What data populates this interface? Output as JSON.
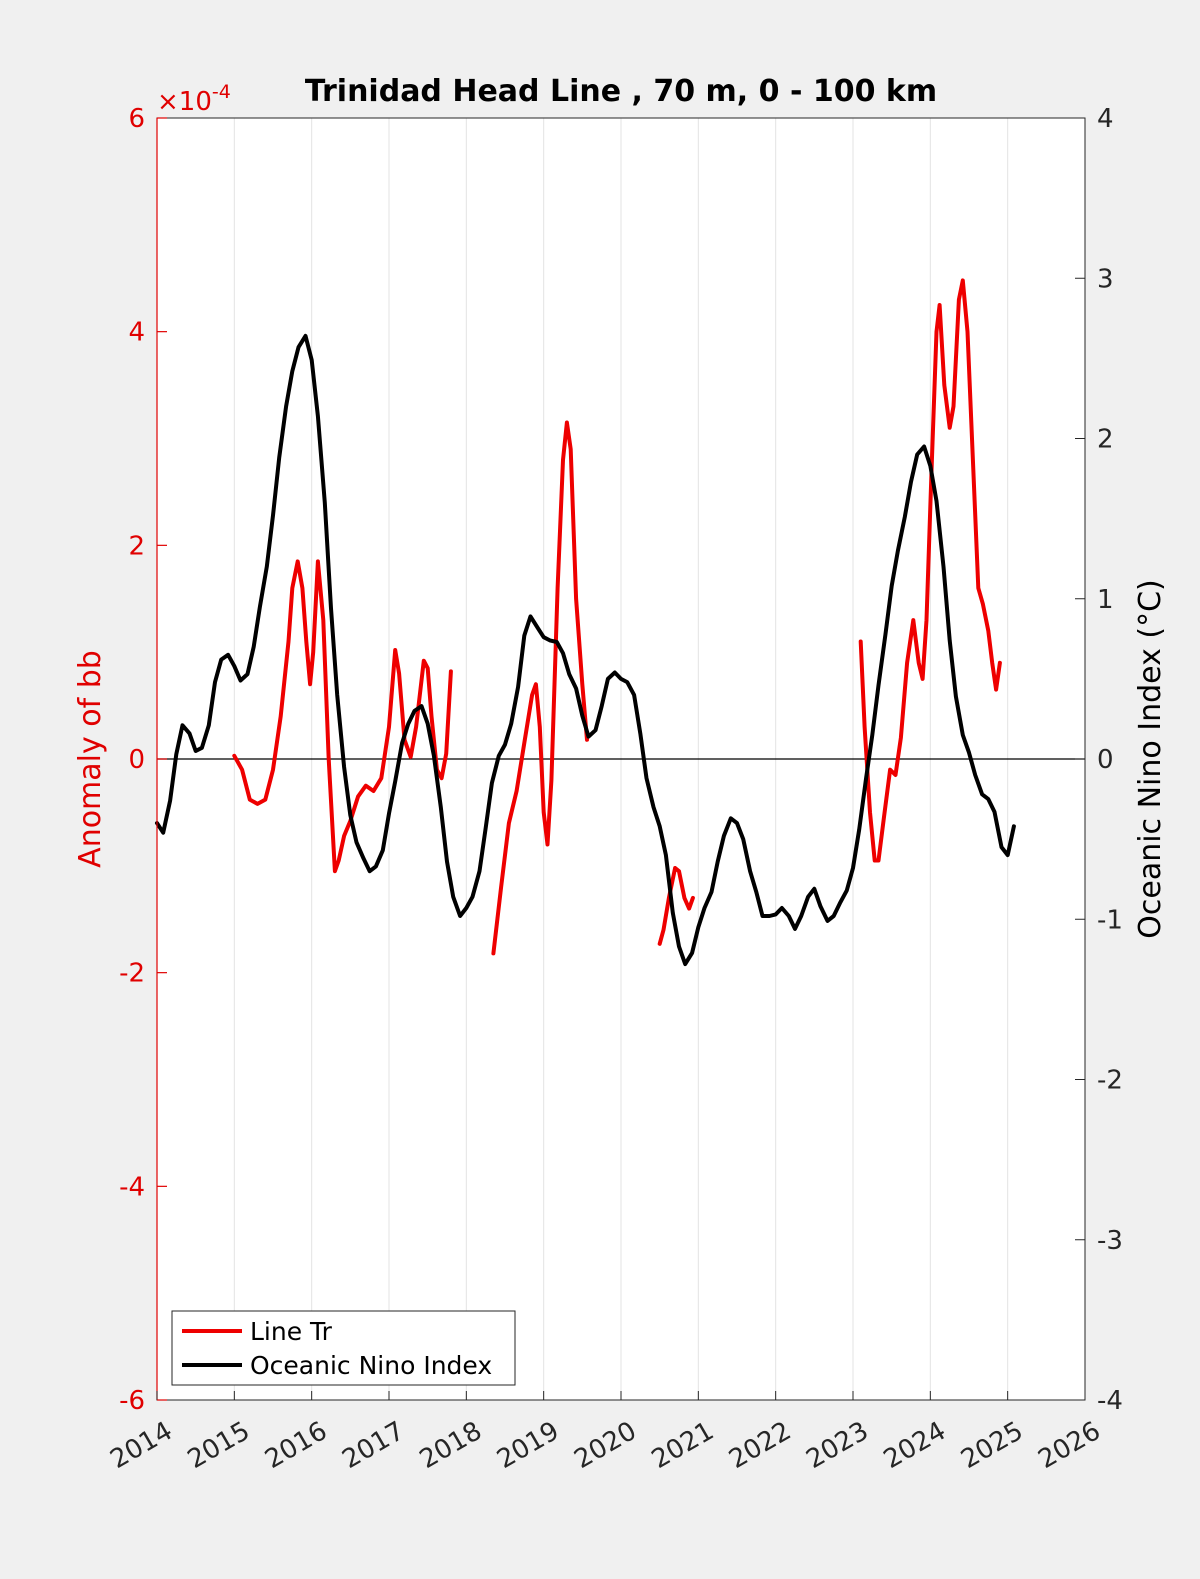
{
  "chart_data": {
    "type": "line",
    "title": "Trinidad Head Line , 70 m, 0 - 100 km",
    "xlabel": "",
    "ylabel_left": "Anomaly of bb",
    "ylabel_right": "Oceanic Nino Index (°C)",
    "left_axis_exponent": "×10",
    "left_axis_exponent_power": "-4",
    "xlim": [
      2014,
      2026
    ],
    "ylim_left": [
      -6,
      6
    ],
    "ylim_right": [
      -4,
      4
    ],
    "x_ticks": [
      2014,
      2015,
      2016,
      2017,
      2018,
      2019,
      2020,
      2021,
      2022,
      2023,
      2024,
      2025,
      2026
    ],
    "y_left_ticks": [
      -6,
      -4,
      -2,
      0,
      2,
      4,
      6
    ],
    "y_right_ticks": [
      -4,
      -3,
      -2,
      -1,
      0,
      1,
      2,
      3,
      4
    ],
    "grid": "vertical",
    "legend_position": "bottom-left",
    "colors": {
      "left_axis": "#e00000",
      "right_axis": "#000000",
      "background": "#f0f0f0",
      "plot_bg": "#ffffff",
      "grid": "#e3e3e3"
    },
    "series": [
      {
        "name": "Line Tr",
        "axis": "left",
        "color": "#ee0000",
        "segments": [
          [
            [
              2015.0,
              0.03
            ],
            [
              2015.1,
              -0.1
            ],
            [
              2015.2,
              -0.38
            ],
            [
              2015.3,
              -0.42
            ],
            [
              2015.4,
              -0.38
            ],
            [
              2015.5,
              -0.1
            ],
            [
              2015.6,
              0.4
            ],
            [
              2015.7,
              1.1
            ],
            [
              2015.75,
              1.6
            ],
            [
              2015.82,
              1.85
            ],
            [
              2015.88,
              1.6
            ],
            [
              2015.93,
              1.1
            ],
            [
              2015.98,
              0.7
            ],
            [
              2016.02,
              1.0
            ],
            [
              2016.08,
              1.85
            ],
            [
              2016.15,
              1.3
            ],
            [
              2016.22,
              0.0
            ],
            [
              2016.3,
              -1.05
            ],
            [
              2016.35,
              -0.95
            ],
            [
              2016.42,
              -0.72
            ],
            [
              2016.5,
              -0.58
            ],
            [
              2016.6,
              -0.35
            ],
            [
              2016.7,
              -0.25
            ],
            [
              2016.8,
              -0.3
            ],
            [
              2016.9,
              -0.18
            ],
            [
              2017.0,
              0.3
            ],
            [
              2017.08,
              1.02
            ],
            [
              2017.13,
              0.8
            ],
            [
              2017.2,
              0.18
            ],
            [
              2017.28,
              0.02
            ],
            [
              2017.35,
              0.3
            ],
            [
              2017.45,
              0.92
            ],
            [
              2017.5,
              0.85
            ],
            [
              2017.55,
              0.4
            ],
            [
              2017.62,
              -0.1
            ],
            [
              2017.68,
              -0.18
            ],
            [
              2017.74,
              0.05
            ],
            [
              2017.8,
              0.82
            ]
          ],
          [
            [
              2018.35,
              -1.82
            ],
            [
              2018.45,
              -1.2
            ],
            [
              2018.55,
              -0.6
            ],
            [
              2018.65,
              -0.3
            ],
            [
              2018.75,
              0.15
            ],
            [
              2018.85,
              0.6
            ],
            [
              2018.9,
              0.7
            ],
            [
              2018.95,
              0.3
            ],
            [
              2019.0,
              -0.5
            ],
            [
              2019.05,
              -0.8
            ],
            [
              2019.1,
              -0.2
            ],
            [
              2019.18,
              1.6
            ],
            [
              2019.25,
              2.8
            ],
            [
              2019.3,
              3.15
            ],
            [
              2019.35,
              2.9
            ],
            [
              2019.42,
              1.5
            ],
            [
              2019.5,
              0.7
            ],
            [
              2019.56,
              0.18
            ]
          ],
          [
            [
              2020.5,
              -1.73
            ],
            [
              2020.55,
              -1.6
            ],
            [
              2020.62,
              -1.3
            ],
            [
              2020.7,
              -1.02
            ],
            [
              2020.75,
              -1.05
            ],
            [
              2020.82,
              -1.3
            ],
            [
              2020.88,
              -1.4
            ],
            [
              2020.93,
              -1.3
            ]
          ],
          [
            [
              2023.1,
              1.1
            ],
            [
              2023.15,
              0.3
            ],
            [
              2023.22,
              -0.5
            ],
            [
              2023.28,
              -0.95
            ],
            [
              2023.33,
              -0.95
            ],
            [
              2023.4,
              -0.55
            ],
            [
              2023.48,
              -0.1
            ],
            [
              2023.55,
              -0.15
            ],
            [
              2023.62,
              0.2
            ],
            [
              2023.7,
              0.9
            ],
            [
              2023.78,
              1.3
            ],
            [
              2023.85,
              0.9
            ],
            [
              2023.9,
              0.75
            ],
            [
              2023.95,
              1.3
            ],
            [
              2024.02,
              2.8
            ],
            [
              2024.08,
              4.0
            ],
            [
              2024.12,
              4.25
            ],
            [
              2024.18,
              3.5
            ],
            [
              2024.25,
              3.1
            ],
            [
              2024.3,
              3.3
            ],
            [
              2024.37,
              4.3
            ],
            [
              2024.42,
              4.48
            ],
            [
              2024.48,
              4.0
            ],
            [
              2024.55,
              2.8
            ],
            [
              2024.62,
              1.6
            ],
            [
              2024.68,
              1.45
            ],
            [
              2024.75,
              1.2
            ],
            [
              2024.8,
              0.9
            ],
            [
              2024.85,
              0.65
            ],
            [
              2024.9,
              0.9
            ]
          ]
        ]
      },
      {
        "name": "Oceanic Nino Index",
        "axis": "right",
        "color": "#000000",
        "segments": [
          [
            [
              2014.0,
              -0.4
            ],
            [
              2014.08,
              -0.46
            ],
            [
              2014.17,
              -0.26
            ],
            [
              2014.25,
              0.03
            ],
            [
              2014.33,
              0.21
            ],
            [
              2014.42,
              0.16
            ],
            [
              2014.5,
              0.05
            ],
            [
              2014.58,
              0.07
            ],
            [
              2014.67,
              0.21
            ],
            [
              2014.75,
              0.48
            ],
            [
              2014.83,
              0.62
            ],
            [
              2014.92,
              0.65
            ],
            [
              2015.0,
              0.58
            ],
            [
              2015.08,
              0.49
            ],
            [
              2015.17,
              0.53
            ],
            [
              2015.25,
              0.7
            ],
            [
              2015.33,
              0.95
            ],
            [
              2015.42,
              1.2
            ],
            [
              2015.5,
              1.52
            ],
            [
              2015.58,
              1.88
            ],
            [
              2015.67,
              2.2
            ],
            [
              2015.75,
              2.42
            ],
            [
              2015.83,
              2.57
            ],
            [
              2015.92,
              2.64
            ],
            [
              2016.0,
              2.49
            ],
            [
              2016.08,
              2.14
            ],
            [
              2016.17,
              1.6
            ],
            [
              2016.25,
              0.94
            ],
            [
              2016.33,
              0.4
            ],
            [
              2016.42,
              -0.05
            ],
            [
              2016.5,
              -0.35
            ],
            [
              2016.58,
              -0.52
            ],
            [
              2016.67,
              -0.62
            ],
            [
              2016.75,
              -0.7
            ],
            [
              2016.83,
              -0.67
            ],
            [
              2016.92,
              -0.57
            ],
            [
              2017.0,
              -0.34
            ],
            [
              2017.08,
              -0.14
            ],
            [
              2017.17,
              0.1
            ],
            [
              2017.25,
              0.22
            ],
            [
              2017.33,
              0.3
            ],
            [
              2017.42,
              0.33
            ],
            [
              2017.5,
              0.22
            ],
            [
              2017.58,
              0.02
            ],
            [
              2017.67,
              -0.3
            ],
            [
              2017.75,
              -0.64
            ],
            [
              2017.83,
              -0.86
            ],
            [
              2017.92,
              -0.98
            ],
            [
              2018.0,
              -0.93
            ],
            [
              2018.08,
              -0.86
            ],
            [
              2018.17,
              -0.7
            ],
            [
              2018.25,
              -0.43
            ],
            [
              2018.33,
              -0.15
            ],
            [
              2018.42,
              0.02
            ],
            [
              2018.5,
              0.09
            ],
            [
              2018.58,
              0.22
            ],
            [
              2018.67,
              0.45
            ],
            [
              2018.75,
              0.77
            ],
            [
              2018.83,
              0.89
            ],
            [
              2018.92,
              0.82
            ],
            [
              2019.0,
              0.76
            ],
            [
              2019.08,
              0.74
            ],
            [
              2019.17,
              0.73
            ],
            [
              2019.25,
              0.66
            ],
            [
              2019.33,
              0.53
            ],
            [
              2019.42,
              0.44
            ],
            [
              2019.5,
              0.27
            ],
            [
              2019.58,
              0.14
            ],
            [
              2019.67,
              0.18
            ],
            [
              2019.75,
              0.33
            ],
            [
              2019.83,
              0.5
            ],
            [
              2019.92,
              0.54
            ],
            [
              2020.0,
              0.5
            ],
            [
              2020.08,
              0.48
            ],
            [
              2020.17,
              0.4
            ],
            [
              2020.25,
              0.16
            ],
            [
              2020.33,
              -0.12
            ],
            [
              2020.42,
              -0.3
            ],
            [
              2020.5,
              -0.42
            ],
            [
              2020.58,
              -0.6
            ],
            [
              2020.67,
              -0.96
            ],
            [
              2020.75,
              -1.17
            ],
            [
              2020.83,
              -1.28
            ],
            [
              2020.92,
              -1.21
            ],
            [
              2021.0,
              -1.05
            ],
            [
              2021.08,
              -0.93
            ],
            [
              2021.17,
              -0.83
            ],
            [
              2021.25,
              -0.64
            ],
            [
              2021.33,
              -0.48
            ],
            [
              2021.42,
              -0.37
            ],
            [
              2021.5,
              -0.4
            ],
            [
              2021.58,
              -0.5
            ],
            [
              2021.67,
              -0.7
            ],
            [
              2021.75,
              -0.83
            ],
            [
              2021.83,
              -0.98
            ],
            [
              2021.92,
              -0.98
            ],
            [
              2022.0,
              -0.97
            ],
            [
              2022.08,
              -0.93
            ],
            [
              2022.17,
              -0.98
            ],
            [
              2022.25,
              -1.06
            ],
            [
              2022.33,
              -0.98
            ],
            [
              2022.42,
              -0.86
            ],
            [
              2022.5,
              -0.81
            ],
            [
              2022.58,
              -0.92
            ],
            [
              2022.67,
              -1.01
            ],
            [
              2022.75,
              -0.98
            ],
            [
              2022.83,
              -0.9
            ],
            [
              2022.92,
              -0.82
            ],
            [
              2023.0,
              -0.68
            ],
            [
              2023.08,
              -0.44
            ],
            [
              2023.17,
              -0.12
            ],
            [
              2023.25,
              0.15
            ],
            [
              2023.33,
              0.46
            ],
            [
              2023.42,
              0.78
            ],
            [
              2023.5,
              1.08
            ],
            [
              2023.58,
              1.3
            ],
            [
              2023.67,
              1.51
            ],
            [
              2023.75,
              1.73
            ],
            [
              2023.83,
              1.9
            ],
            [
              2023.92,
              1.95
            ],
            [
              2024.0,
              1.83
            ],
            [
              2024.08,
              1.61
            ],
            [
              2024.17,
              1.2
            ],
            [
              2024.25,
              0.74
            ],
            [
              2024.33,
              0.39
            ],
            [
              2024.42,
              0.15
            ],
            [
              2024.5,
              0.04
            ],
            [
              2024.58,
              -0.1
            ],
            [
              2024.67,
              -0.22
            ],
            [
              2024.75,
              -0.25
            ],
            [
              2024.83,
              -0.33
            ],
            [
              2024.92,
              -0.55
            ],
            [
              2025.0,
              -0.6
            ],
            [
              2025.08,
              -0.42
            ]
          ]
        ]
      }
    ]
  }
}
